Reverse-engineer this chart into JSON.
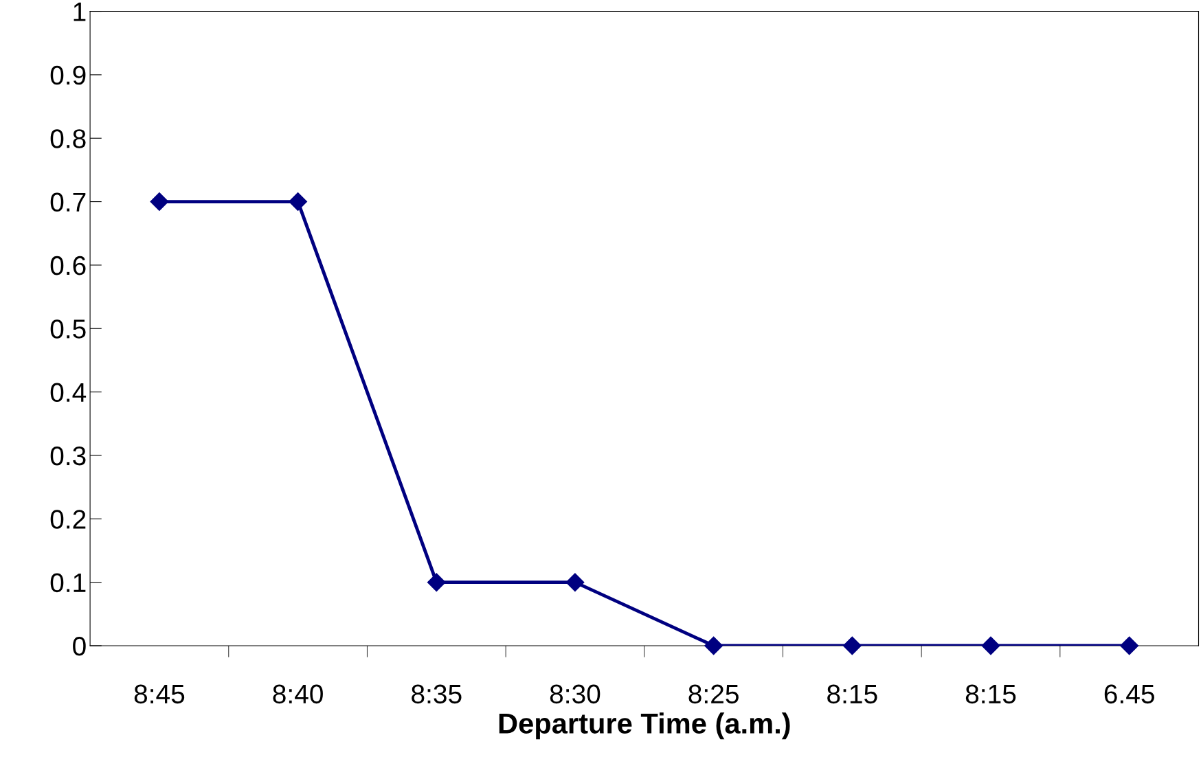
{
  "chart_data": {
    "type": "line",
    "xlabel": "Departure Time (a.m.)",
    "categories": [
      "8:45",
      "8:40",
      "8:35",
      "8:30",
      "8:25",
      "8:15",
      "8:15",
      "6.45"
    ],
    "series": [
      {
        "color": "#000080",
        "values": [
          0.7,
          0.7,
          0.1,
          0.1,
          0,
          0,
          0,
          0
        ]
      }
    ],
    "ylim": [
      0,
      1
    ],
    "yticks": [
      0,
      0.1,
      0.2,
      0.3,
      0.4,
      0.5,
      0.6,
      0.7,
      0.8,
      0.9,
      1
    ],
    "marker": "diamond",
    "line_style": "solid",
    "grid": false
  }
}
